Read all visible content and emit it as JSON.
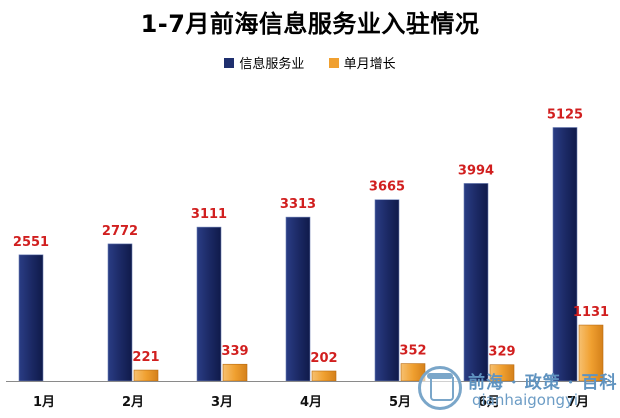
{
  "chart_data": {
    "type": "bar",
    "title": "1-7月前海信息服务业入驻情况",
    "categories": [
      "1月",
      "2月",
      "3月",
      "4月",
      "5月",
      "6月",
      "7月"
    ],
    "series": [
      {
        "name": "信息服务业",
        "values": [
          2551,
          2772,
          3111,
          3313,
          3665,
          3994,
          5125
        ],
        "color": "#1f2f6e"
      },
      {
        "name": "单月增长",
        "values": [
          null,
          221,
          339,
          202,
          352,
          329,
          1131
        ],
        "color": "#f0a030"
      }
    ],
    "ylim": [
      0,
      5600
    ],
    "grid": false,
    "legend": "top-center",
    "label_color": "#d11f1f"
  },
  "watermark": {
    "line1": "前海 · 政策 · 百科",
    "line2": "qianhaigongyi"
  }
}
